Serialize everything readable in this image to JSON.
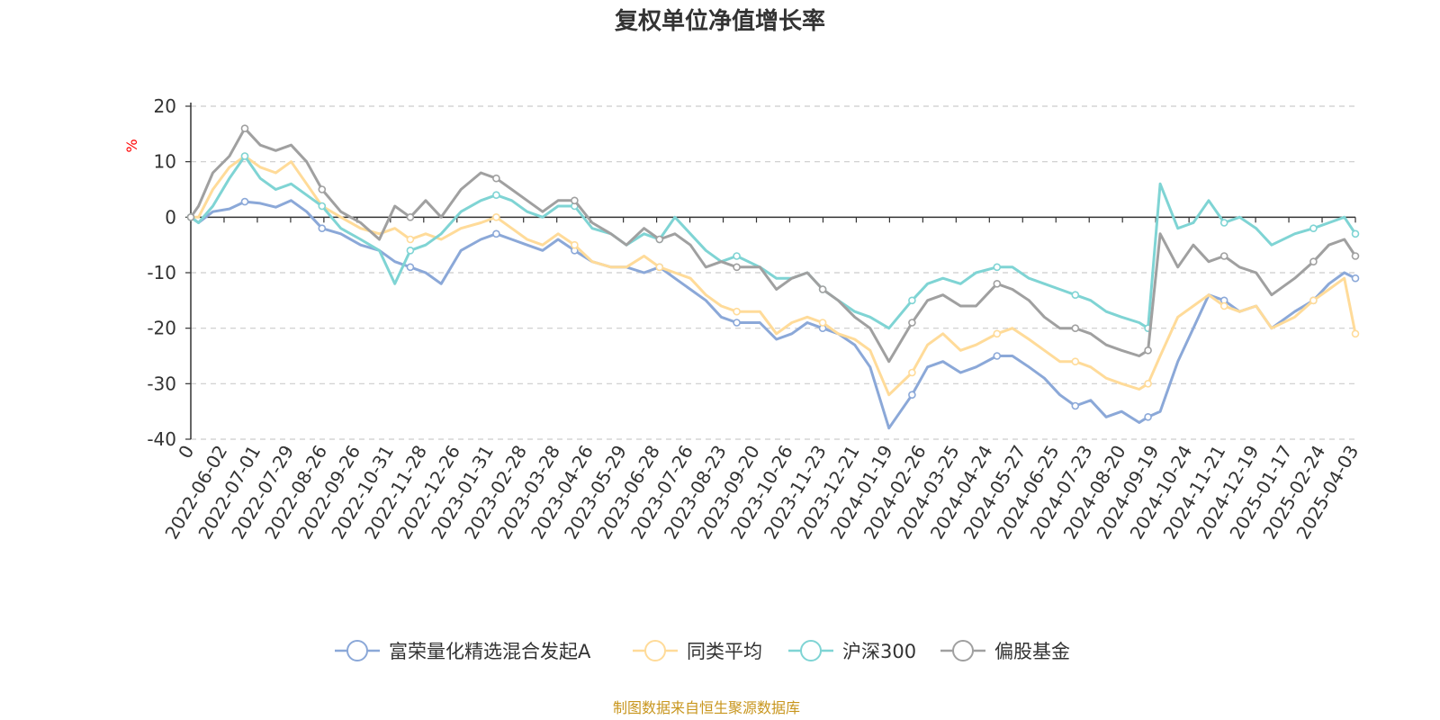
{
  "chart_data": {
    "type": "line",
    "title": "复权单位净值增长率",
    "ylabel": "%",
    "xlabel": "",
    "ylim": [
      -40,
      20
    ],
    "y_ticks": [
      20,
      10,
      0,
      -10,
      -20,
      -30,
      -40
    ],
    "x_tick_labels": [
      "0",
      "2022-06-02",
      "2022-07-01",
      "2022-07-29",
      "2022-08-26",
      "2022-09-26",
      "2022-10-31",
      "2022-11-28",
      "2022-12-26",
      "2023-01-31",
      "2023-02-28",
      "2023-03-28",
      "2023-04-26",
      "2023-05-29",
      "2023-06-28",
      "2023-07-26",
      "2023-08-23",
      "2023-09-20",
      "2023-10-26",
      "2023-11-23",
      "2023-12-21",
      "2024-01-19",
      "2024-02-26",
      "2024-03-25",
      "2024-04-24",
      "2024-05-27",
      "2024-06-25",
      "2024-07-23",
      "2024-08-20",
      "2024-09-19",
      "2024-10-24",
      "2024-11-21",
      "2024-12-19",
      "2025-01-17",
      "2025-02-24",
      "2025-04-03"
    ],
    "grid": true,
    "legend_position": "bottom",
    "footer": "制图数据来自恒生聚源数据库",
    "x": [
      "2022-05-13",
      "2022-05-20",
      "2022-06-02",
      "2022-06-17",
      "2022-07-01",
      "2022-07-15",
      "2022-07-29",
      "2022-08-12",
      "2022-08-26",
      "2022-09-09",
      "2022-09-26",
      "2022-10-14",
      "2022-10-31",
      "2022-11-14",
      "2022-11-28",
      "2022-12-12",
      "2022-12-26",
      "2023-01-13",
      "2023-01-31",
      "2023-02-14",
      "2023-02-28",
      "2023-03-14",
      "2023-03-28",
      "2023-04-11",
      "2023-04-26",
      "2023-05-12",
      "2023-05-29",
      "2023-06-12",
      "2023-06-28",
      "2023-07-12",
      "2023-07-26",
      "2023-08-09",
      "2023-08-23",
      "2023-09-06",
      "2023-09-20",
      "2023-10-11",
      "2023-10-26",
      "2023-11-09",
      "2023-11-23",
      "2023-12-07",
      "2023-12-21",
      "2024-01-05",
      "2024-01-19",
      "2024-02-05",
      "2024-02-26",
      "2024-03-11",
      "2024-03-25",
      "2024-04-10",
      "2024-04-24",
      "2024-05-13",
      "2024-05-27",
      "2024-06-11",
      "2024-06-25",
      "2024-07-09",
      "2024-07-23",
      "2024-08-06",
      "2024-08-20",
      "2024-09-03",
      "2024-09-19",
      "2024-09-27",
      "2024-10-08",
      "2024-10-24",
      "2024-11-07",
      "2024-11-21",
      "2024-12-05",
      "2024-12-19",
      "2025-01-03",
      "2025-01-17",
      "2025-02-07",
      "2025-02-24",
      "2025-03-10",
      "2025-03-24",
      "2025-04-03"
    ],
    "series": [
      {
        "name": "富荣量化精选混合发起A",
        "color": "#8ba8d8",
        "values": [
          0,
          -1,
          1,
          1.5,
          2.8,
          2.5,
          1.8,
          3,
          1,
          -2,
          -3,
          -5,
          -6,
          -8,
          -9,
          -10,
          -12,
          -6,
          -4,
          -3,
          -4,
          -5,
          -6,
          -4,
          -6,
          -8,
          -9,
          -9,
          -10,
          -9,
          -11,
          -13,
          -15,
          -18,
          -19,
          -19,
          -22,
          -21,
          -19,
          -20,
          -21,
          -23,
          -27,
          -38,
          -32,
          -27,
          -26,
          -28,
          -27,
          -25,
          -25,
          -27,
          -29,
          -32,
          -34,
          -33,
          -36,
          -35,
          -37,
          -36,
          -35,
          -26,
          -20,
          -14,
          -15,
          -17,
          -16,
          -20,
          -17,
          -15,
          -12,
          -10,
          -11
        ]
      },
      {
        "name": "同类平均",
        "color": "#ffdb99",
        "values": [
          0,
          0,
          5,
          9,
          11,
          9,
          8,
          10,
          6,
          2,
          0,
          -2,
          -3,
          -2,
          -4,
          -3,
          -4,
          -2,
          -1,
          0,
          -2,
          -4,
          -5,
          -3,
          -5,
          -8,
          -9,
          -9,
          -7,
          -9,
          -10,
          -11,
          -14,
          -16,
          -17,
          -17,
          -21,
          -19,
          -18,
          -19,
          -21,
          -22,
          -24,
          -32,
          -28,
          -23,
          -21,
          -24,
          -23,
          -21,
          -20,
          -22,
          -24,
          -26,
          -26,
          -27,
          -29,
          -30,
          -31,
          -30,
          -25,
          -18,
          -16,
          -14,
          -16,
          -17,
          -16,
          -20,
          -18,
          -15,
          -13,
          -11,
          -21
        ]
      },
      {
        "name": "沪深300",
        "color": "#7fd4d4",
        "values": [
          0,
          -1,
          2,
          7,
          11,
          7,
          5,
          6,
          4,
          2,
          -2,
          -4,
          -6,
          -12,
          -6,
          -5,
          -3,
          1,
          3,
          4,
          3,
          1,
          0,
          2,
          2,
          -2,
          -3,
          -5,
          -3,
          -4,
          0,
          -3,
          -6,
          -8,
          -7,
          -9,
          -11,
          -11,
          -10,
          -13,
          -15,
          -17,
          -18,
          -20,
          -15,
          -12,
          -11,
          -12,
          -10,
          -9,
          -9,
          -11,
          -12,
          -13,
          -14,
          -15,
          -17,
          -18,
          -19,
          -20,
          6,
          -2,
          -1,
          3,
          -1,
          0,
          -2,
          -5,
          -3,
          -2,
          -1,
          0,
          -3
        ]
      },
      {
        "name": "偏股基金",
        "color": "#a0a0a0",
        "values": [
          0,
          2,
          8,
          11,
          16,
          13,
          12,
          13,
          10,
          5,
          1,
          -1,
          -4,
          2,
          0,
          3,
          0,
          5,
          8,
          7,
          5,
          3,
          1,
          3,
          3,
          -1,
          -3,
          -5,
          -2,
          -4,
          -3,
          -5,
          -9,
          -8,
          -9,
          -9,
          -13,
          -11,
          -10,
          -13,
          -15,
          -18,
          -20,
          -26,
          -19,
          -15,
          -14,
          -16,
          -16,
          -12,
          -13,
          -15,
          -18,
          -20,
          -20,
          -21,
          -23,
          -24,
          -25,
          -24,
          -3,
          -9,
          -5,
          -8,
          -7,
          -9,
          -10,
          -14,
          -11,
          -8,
          -5,
          -4,
          -7
        ]
      }
    ]
  }
}
